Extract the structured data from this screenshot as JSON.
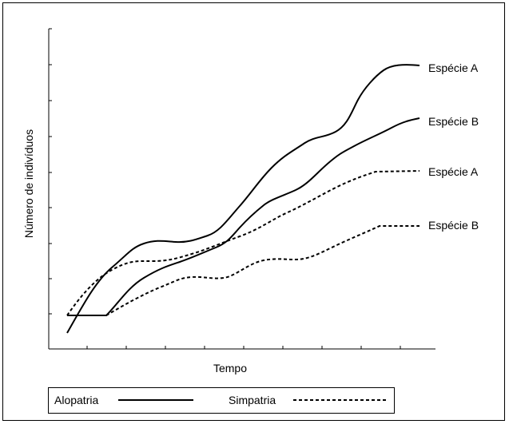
{
  "chart_data": {
    "type": "line",
    "xlabel": "Tempo",
    "ylabel": "Número de indivíduos",
    "xlim": [
      0,
      10
    ],
    "ylim": [
      0,
      10
    ],
    "grid": false,
    "legend_position": "bottom-left",
    "legend": [
      {
        "label": "Alopatria",
        "style": "solid"
      },
      {
        "label": "Simpatria",
        "style": "dashed"
      }
    ],
    "series": [
      {
        "name": "Espécie A",
        "group": "Alopatria",
        "style": "solid",
        "x": [
          0.5,
          0.9,
          1.3,
          1.8,
          2.3,
          2.8,
          3.3,
          3.8,
          4.3,
          4.8,
          5.3,
          5.8,
          6.3,
          6.8,
          7.3,
          7.8,
          8.3,
          8.8,
          9.3
        ],
        "y": [
          0.4,
          1.7,
          2.7,
          3.4,
          3.0,
          3.2,
          3.1,
          3.3,
          4.0,
          5.0,
          6.0,
          6.6,
          7.1,
          7.4,
          8.2,
          9.2,
          9.5,
          9.7,
          9.0
        ]
      },
      {
        "name": "Espécie B",
        "group": "Alopatria",
        "style": "solid",
        "x": [
          0.5,
          1.0,
          1.5,
          2.0,
          2.5,
          3.0,
          3.5,
          4.0,
          4.5,
          5.0,
          5.5,
          6.0,
          6.5,
          7.0,
          7.5,
          8.0,
          8.5,
          9.0,
          9.5
        ],
        "y": [
          1.0,
          1.0,
          1.0,
          1.9,
          2.1,
          2.4,
          2.7,
          3.0,
          3.5,
          4.2,
          4.5,
          4.8,
          5.4,
          6.0,
          6.3,
          6.6,
          6.9,
          7.2,
          6.5
        ]
      },
      {
        "name": "Espécie A",
        "group": "Simpatria",
        "style": "dashed",
        "x": [
          0.5,
          1.0,
          1.5,
          2.0,
          2.5,
          3.0,
          3.5,
          4.0,
          4.5,
          5.0,
          5.5,
          6.0,
          6.5,
          7.0,
          7.5,
          8.0,
          8.5,
          9.0,
          9.5
        ],
        "y": [
          1.0,
          1.6,
          2.2,
          2.5,
          2.5,
          2.6,
          2.8,
          3.0,
          3.4,
          3.8,
          4.2,
          4.6,
          5.0,
          5.4,
          5.8,
          6.2,
          6.2,
          6.3,
          5.0
        ]
      },
      {
        "name": "Espécie B",
        "group": "Simpatria",
        "style": "dashed",
        "x": [
          0.5,
          1.0,
          1.5,
          2.0,
          2.5,
          3.0,
          3.5,
          4.0,
          4.5,
          5.0,
          5.5,
          6.0,
          6.5,
          7.0,
          7.5,
          8.0,
          8.5,
          9.0,
          9.5
        ],
        "y": [
          1.0,
          1.0,
          1.2,
          1.5,
          1.8,
          2.0,
          2.0,
          2.2,
          2.4,
          2.5,
          2.5,
          2.6,
          2.8,
          3.2,
          3.4,
          3.6,
          3.6,
          3.5,
          3.5
        ]
      }
    ]
  }
}
